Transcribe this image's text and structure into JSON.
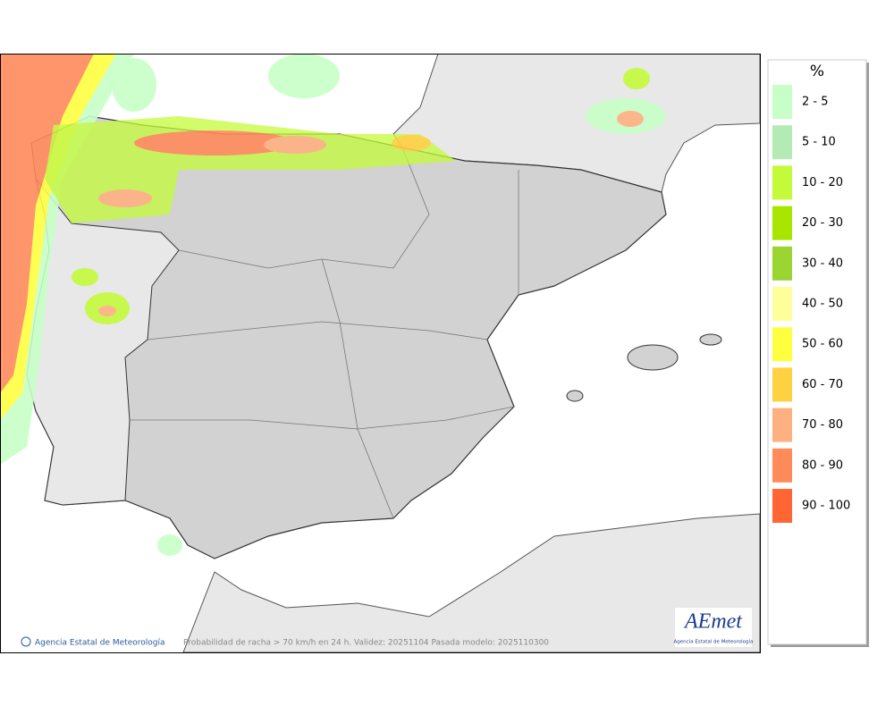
{
  "legend": {
    "title": "%",
    "items": [
      {
        "label": "2 - 5",
        "color": "#c8ffc8"
      },
      {
        "label": "5 - 10",
        "color": "#b4ebb4"
      },
      {
        "label": "10 - 20",
        "color": "#c3fa3a"
      },
      {
        "label": "20 - 30",
        "color": "#a8e600"
      },
      {
        "label": "30 - 40",
        "color": "#9bd531"
      },
      {
        "label": "40 - 50",
        "color": "#ffff99"
      },
      {
        "label": "50 - 60",
        "color": "#ffff40"
      },
      {
        "label": "60 - 70",
        "color": "#ffd040"
      },
      {
        "label": "70 - 80",
        "color": "#ffb080"
      },
      {
        "label": "80 - 90",
        "color": "#ff8a5a"
      },
      {
        "label": "90 - 100",
        "color": "#ff6633"
      }
    ]
  },
  "footer": {
    "credit": "Agencia Estatal de Meteorología",
    "caption": "Probabilidad de racha > 70 km/h en 24 h. Validez: 20251104 Pasada modelo: 2025110300"
  },
  "logo": {
    "name": "AEmet",
    "subtitle": "Agencia Estatal de Meteorología"
  }
}
